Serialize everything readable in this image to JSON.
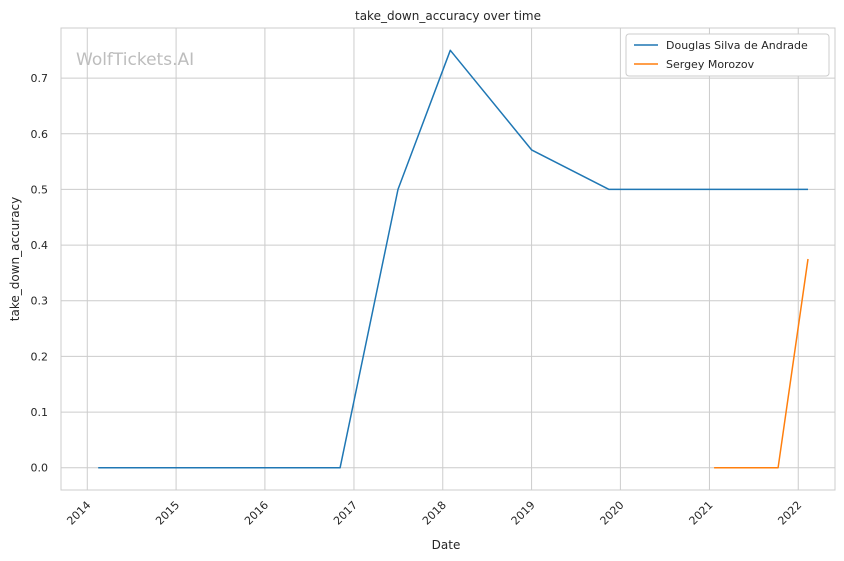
{
  "chart_data": {
    "type": "line",
    "title": "take_down_accuracy over time",
    "xlabel": "Date",
    "ylabel": "take_down_accuracy",
    "watermark": "WolfTickets.AI",
    "x_ticks": [
      "2014",
      "2015",
      "2016",
      "2017",
      "2018",
      "2019",
      "2020",
      "2021",
      "2022"
    ],
    "y_ticks": [
      "0.0",
      "0.1",
      "0.2",
      "0.3",
      "0.4",
      "0.5",
      "0.6",
      "0.7"
    ],
    "xlim": [
      "2013-09-15",
      "2022-06-01"
    ],
    "ylim": [
      -0.04,
      0.79
    ],
    "grid": true,
    "legend_position": "top-right",
    "series": [
      {
        "name": "Douglas Silva de Andrade",
        "color": "#1f77b4",
        "points": [
          {
            "x": "2014-02-15",
            "y": 0.0
          },
          {
            "x": "2016-11-05",
            "y": 0.0
          },
          {
            "x": "2017-07-01",
            "y": 0.5
          },
          {
            "x": "2018-02-01",
            "y": 0.75
          },
          {
            "x": "2019-01-01",
            "y": 0.571
          },
          {
            "x": "2019-11-15",
            "y": 0.5
          },
          {
            "x": "2022-02-10",
            "y": 0.5
          }
        ]
      },
      {
        "name": "Sergey Morozov",
        "color": "#ff7f0e",
        "points": [
          {
            "x": "2021-01-20",
            "y": 0.0
          },
          {
            "x": "2021-10-10",
            "y": 0.0
          },
          {
            "x": "2022-02-10",
            "y": 0.375
          }
        ]
      }
    ]
  }
}
